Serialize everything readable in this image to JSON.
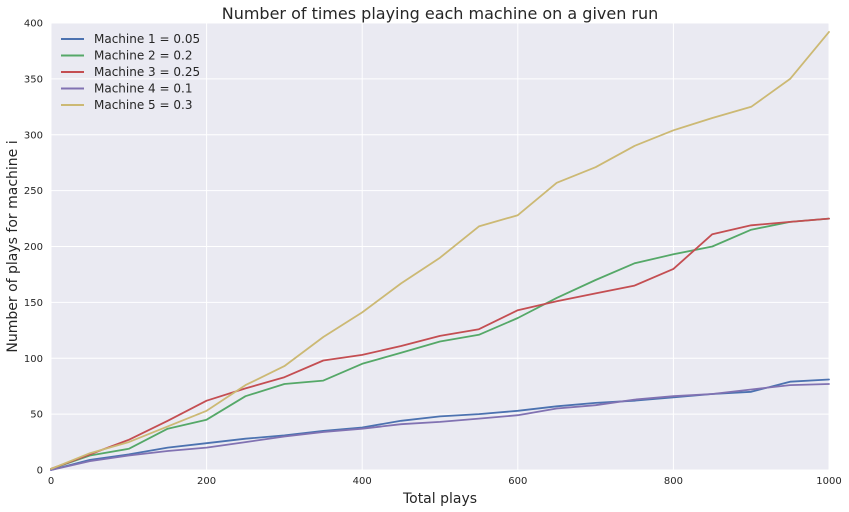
{
  "chart_data": {
    "type": "line",
    "title": "Number of times playing each machine on a given run",
    "xlabel": "Total plays",
    "ylabel": "Number of plays for machine i",
    "xlim": [
      0,
      1000
    ],
    "ylim": [
      0,
      400
    ],
    "xticks": [
      0,
      200,
      400,
      600,
      800,
      1000
    ],
    "yticks": [
      0,
      50,
      100,
      150,
      200,
      250,
      300,
      350,
      400
    ],
    "grid": true,
    "legend_position": "top-left",
    "style": {
      "background": "#eaeaf2",
      "grid_color": "#ffffff"
    },
    "x": [
      0,
      50,
      100,
      150,
      200,
      250,
      300,
      350,
      400,
      450,
      500,
      550,
      600,
      650,
      700,
      750,
      800,
      850,
      900,
      950,
      1000
    ],
    "series": [
      {
        "name": "Machine 1 = 0.05",
        "color": "#4c72b0",
        "values": [
          0,
          9,
          14,
          20,
          24,
          28,
          31,
          35,
          38,
          44,
          48,
          50,
          53,
          57,
          60,
          62,
          65,
          68,
          70,
          79,
          81
        ]
      },
      {
        "name": "Machine 2 = 0.2",
        "color": "#55a868",
        "values": [
          1,
          13,
          19,
          37,
          45,
          66,
          77,
          80,
          95,
          105,
          115,
          121,
          136,
          154,
          170,
          185,
          193,
          200,
          215,
          222,
          225
        ]
      },
      {
        "name": "Machine 3 = 0.25",
        "color": "#c44e52",
        "values": [
          1,
          14,
          27,
          44,
          62,
          73,
          83,
          98,
          103,
          111,
          120,
          126,
          143,
          151,
          158,
          165,
          180,
          211,
          219,
          222,
          225
        ]
      },
      {
        "name": "Machine 4 = 0.1",
        "color": "#8172b2",
        "values": [
          0,
          8,
          13,
          17,
          20,
          25,
          30,
          34,
          37,
          41,
          43,
          46,
          49,
          55,
          58,
          63,
          66,
          68,
          72,
          76,
          77
        ]
      },
      {
        "name": "Machine 5 = 0.3",
        "color": "#ccb974",
        "values": [
          1,
          15,
          25,
          39,
          53,
          76,
          93,
          119,
          141,
          167,
          190,
          218,
          228,
          257,
          271,
          290,
          304,
          315,
          325,
          350,
          392
        ]
      }
    ]
  }
}
